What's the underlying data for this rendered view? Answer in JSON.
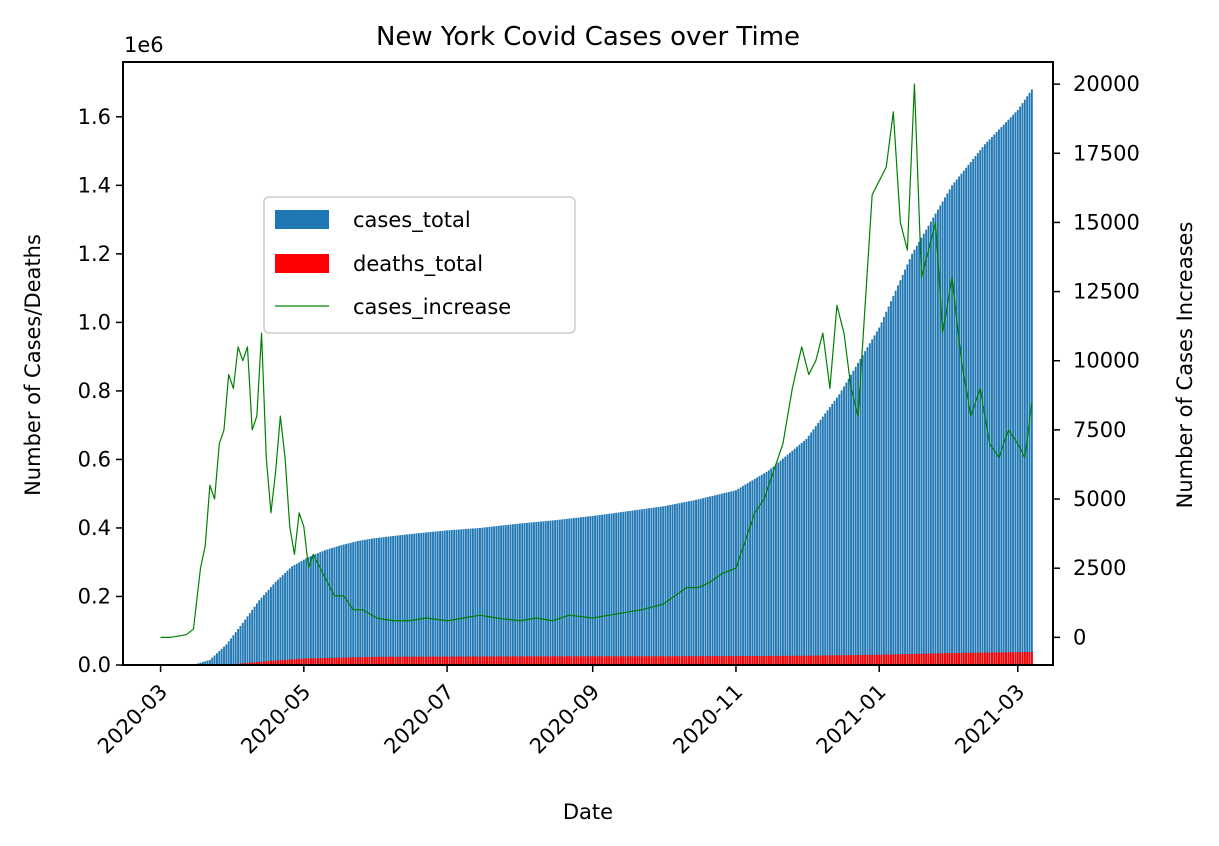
{
  "chart_data": {
    "type": "bar",
    "title": "New York Covid Cases over Time",
    "xlabel": "Date",
    "ylabel_left": "Number of Cases/Deaths",
    "ylabel_right": "Number of Cases Increases",
    "left_axis_offset_label": "1e6",
    "x_range": [
      "2020-02-14",
      "2021-03-16"
    ],
    "x_ticks": [
      "2020-03",
      "2020-05",
      "2020-07",
      "2020-09",
      "2020-11",
      "2021-01",
      "2021-03"
    ],
    "ylim_left": [
      0,
      1760000
    ],
    "y_ticks_left": [
      "0.0",
      "0.2",
      "0.4",
      "0.6",
      "0.8",
      "1.0",
      "1.2",
      "1.4",
      "1.6"
    ],
    "ylim_right": [
      -1000,
      20800
    ],
    "y_ticks_right": [
      "0",
      "2500",
      "5000",
      "7500",
      "10000",
      "12500",
      "15000",
      "17500",
      "20000"
    ],
    "legend_position": "upper-left",
    "grid": false,
    "series": [
      {
        "name": "cases_total",
        "kind": "bar",
        "axis": "left",
        "color": "#1f77b4",
        "points": [
          [
            "2020-03-01",
            1
          ],
          [
            "2020-03-15",
            800
          ],
          [
            "2020-03-22",
            15000
          ],
          [
            "2020-03-29",
            60000
          ],
          [
            "2020-04-05",
            123000
          ],
          [
            "2020-04-12",
            189000
          ],
          [
            "2020-04-19",
            243000
          ],
          [
            "2020-04-26",
            288000
          ],
          [
            "2020-05-03",
            315000
          ],
          [
            "2020-05-10",
            335000
          ],
          [
            "2020-05-17",
            350000
          ],
          [
            "2020-05-24",
            362000
          ],
          [
            "2020-05-31",
            370000
          ],
          [
            "2020-06-15",
            382000
          ],
          [
            "2020-07-01",
            393000
          ],
          [
            "2020-07-15",
            400000
          ],
          [
            "2020-08-01",
            413000
          ],
          [
            "2020-08-15",
            422000
          ],
          [
            "2020-09-01",
            435000
          ],
          [
            "2020-09-15",
            448000
          ],
          [
            "2020-10-01",
            463000
          ],
          [
            "2020-10-15",
            482000
          ],
          [
            "2020-11-01",
            510000
          ],
          [
            "2020-11-15",
            568000
          ],
          [
            "2020-12-01",
            660000
          ],
          [
            "2020-12-15",
            790000
          ],
          [
            "2021-01-01",
            985000
          ],
          [
            "2021-01-15",
            1200000
          ],
          [
            "2021-02-01",
            1400000
          ],
          [
            "2021-02-15",
            1520000
          ],
          [
            "2021-03-01",
            1620000
          ],
          [
            "2021-03-07",
            1680000
          ]
        ]
      },
      {
        "name": "deaths_total",
        "kind": "bar",
        "axis": "left",
        "color": "#ff0000",
        "points": [
          [
            "2020-03-01",
            0
          ],
          [
            "2020-03-15",
            100
          ],
          [
            "2020-04-01",
            2400
          ],
          [
            "2020-04-15",
            11000
          ],
          [
            "2020-05-01",
            19000
          ],
          [
            "2020-06-01",
            24000
          ],
          [
            "2020-08-01",
            25300
          ],
          [
            "2020-10-01",
            25600
          ],
          [
            "2020-11-01",
            26000
          ],
          [
            "2020-12-01",
            27000
          ],
          [
            "2021-01-01",
            30000
          ],
          [
            "2021-02-01",
            35000
          ],
          [
            "2021-03-07",
            38000
          ]
        ]
      },
      {
        "name": "cases_increase",
        "kind": "line",
        "axis": "right",
        "color": "#008000",
        "x": [
          "2020-03-01",
          "2020-03-05",
          "2020-03-09",
          "2020-03-12",
          "2020-03-15",
          "2020-03-18",
          "2020-03-20",
          "2020-03-22",
          "2020-03-24",
          "2020-03-26",
          "2020-03-28",
          "2020-03-30",
          "2020-04-01",
          "2020-04-03",
          "2020-04-05",
          "2020-04-07",
          "2020-04-09",
          "2020-04-11",
          "2020-04-13",
          "2020-04-15",
          "2020-04-17",
          "2020-04-19",
          "2020-04-21",
          "2020-04-23",
          "2020-04-25",
          "2020-04-27",
          "2020-04-29",
          "2020-05-01",
          "2020-05-03",
          "2020-05-05",
          "2020-05-08",
          "2020-05-11",
          "2020-05-14",
          "2020-05-18",
          "2020-05-22",
          "2020-05-26",
          "2020-06-01",
          "2020-06-08",
          "2020-06-15",
          "2020-06-22",
          "2020-07-01",
          "2020-07-08",
          "2020-07-15",
          "2020-07-22",
          "2020-08-01",
          "2020-08-08",
          "2020-08-15",
          "2020-08-22",
          "2020-09-01",
          "2020-09-08",
          "2020-09-15",
          "2020-09-22",
          "2020-10-01",
          "2020-10-06",
          "2020-10-11",
          "2020-10-16",
          "2020-10-21",
          "2020-10-26",
          "2020-11-01",
          "2020-11-05",
          "2020-11-09",
          "2020-11-13",
          "2020-11-17",
          "2020-11-21",
          "2020-11-25",
          "2020-11-29",
          "2020-12-02",
          "2020-12-05",
          "2020-12-08",
          "2020-12-11",
          "2020-12-14",
          "2020-12-17",
          "2020-12-20",
          "2020-12-23",
          "2020-12-26",
          "2020-12-29",
          "2021-01-01",
          "2021-01-04",
          "2021-01-07",
          "2021-01-10",
          "2021-01-13",
          "2021-01-16",
          "2021-01-19",
          "2021-01-22",
          "2021-01-25",
          "2021-01-28",
          "2021-02-01",
          "2021-02-05",
          "2021-02-09",
          "2021-02-13",
          "2021-02-17",
          "2021-02-21",
          "2021-02-25",
          "2021-03-01",
          "2021-03-04",
          "2021-03-07"
        ],
        "values": [
          0,
          0,
          50,
          100,
          300,
          2500,
          3300,
          5500,
          5000,
          7000,
          7500,
          9500,
          9000,
          10500,
          10000,
          10500,
          7500,
          8000,
          11000,
          6500,
          4500,
          6000,
          8000,
          6500,
          4000,
          3000,
          4500,
          4000,
          2500,
          3000,
          2500,
          2000,
          1500,
          1500,
          1000,
          1000,
          700,
          600,
          600,
          700,
          600,
          700,
          800,
          700,
          600,
          700,
          600,
          800,
          700,
          800,
          900,
          1000,
          1200,
          1500,
          1800,
          1800,
          2000,
          2300,
          2500,
          3500,
          4500,
          5000,
          6000,
          7000,
          9000,
          10500,
          9500,
          10000,
          11000,
          9000,
          12000,
          11000,
          9000,
          8000,
          12000,
          16000,
          16500,
          17000,
          19000,
          15000,
          14000,
          20000,
          13000,
          14000,
          15000,
          11000,
          13000,
          10000,
          8000,
          9000,
          7000,
          6500,
          7500,
          7000,
          6500,
          8500
        ]
      }
    ]
  }
}
